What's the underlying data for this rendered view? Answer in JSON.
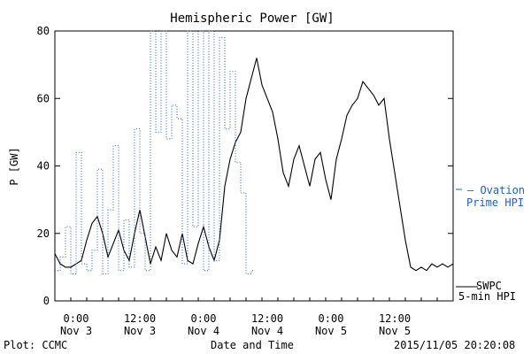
{
  "chart_data": {
    "type": "line",
    "title": "Hemispheric Power [GW]",
    "ylabel": "P [GW]",
    "xlabel": "Date and Time",
    "ylim": [
      0,
      80
    ],
    "xlim": [
      "2015-11-02 20:00",
      "2015-11-05 23:00"
    ],
    "y_ticks": [
      "0",
      "20",
      "40",
      "60",
      "80"
    ],
    "x_ticks": [
      {
        "time": "2015-11-03 00:00",
        "label1": "0:00",
        "label2": "Nov 3"
      },
      {
        "time": "2015-11-03 12:00",
        "label1": "12:00",
        "label2": "Nov 3"
      },
      {
        "time": "2015-11-04 00:00",
        "label1": "0:00",
        "label2": "Nov 4"
      },
      {
        "time": "2015-11-04 12:00",
        "label1": "12:00",
        "label2": "Nov 4"
      },
      {
        "time": "2015-11-05 00:00",
        "label1": "0:00",
        "label2": "Nov 5"
      },
      {
        "time": "2015-11-05 12:00",
        "label1": "12:00",
        "label2": "Nov 5"
      }
    ],
    "legend": [
      {
        "line1": "SWPC",
        "line2": "5-min HPI",
        "color": "#000000"
      },
      {
        "line1": "– Ovation",
        "line2": "Prime HPI",
        "color": "#1f5fbf"
      }
    ],
    "footer_left": "Plot: CCMC",
    "footer_right": "2015/11/05 20:20:08",
    "series": [
      {
        "name": "SWPC 5-min HPI",
        "color": "#000000",
        "style": "solid",
        "points": [
          [
            "2015-11-02 20:00",
            14
          ],
          [
            "2015-11-02 21:00",
            11
          ],
          [
            "2015-11-02 22:00",
            10
          ],
          [
            "2015-11-02 23:00",
            10
          ],
          [
            "2015-11-03 00:00",
            11
          ],
          [
            "2015-11-03 01:00",
            12
          ],
          [
            "2015-11-03 02:00",
            18
          ],
          [
            "2015-11-03 03:00",
            23
          ],
          [
            "2015-11-03 04:00",
            25
          ],
          [
            "2015-11-03 05:00",
            20
          ],
          [
            "2015-11-03 06:00",
            13
          ],
          [
            "2015-11-03 07:00",
            17
          ],
          [
            "2015-11-03 08:00",
            21
          ],
          [
            "2015-11-03 09:00",
            15
          ],
          [
            "2015-11-03 10:00",
            12
          ],
          [
            "2015-11-03 11:00",
            20
          ],
          [
            "2015-11-03 12:00",
            27
          ],
          [
            "2015-11-03 13:00",
            19
          ],
          [
            "2015-11-03 14:00",
            11
          ],
          [
            "2015-11-03 15:00",
            16
          ],
          [
            "2015-11-03 16:00",
            12
          ],
          [
            "2015-11-03 17:00",
            20
          ],
          [
            "2015-11-03 18:00",
            15
          ],
          [
            "2015-11-03 19:00",
            13
          ],
          [
            "2015-11-03 20:00",
            20
          ],
          [
            "2015-11-03 21:00",
            12
          ],
          [
            "2015-11-03 22:00",
            11
          ],
          [
            "2015-11-03 23:00",
            17
          ],
          [
            "2015-11-04 00:00",
            22
          ],
          [
            "2015-11-04 01:00",
            16
          ],
          [
            "2015-11-04 02:00",
            12
          ],
          [
            "2015-11-04 03:00",
            18
          ],
          [
            "2015-11-04 04:00",
            34
          ],
          [
            "2015-11-04 05:00",
            42
          ],
          [
            "2015-11-04 06:00",
            47
          ],
          [
            "2015-11-04 07:00",
            50
          ],
          [
            "2015-11-04 08:00",
            60
          ],
          [
            "2015-11-04 09:00",
            66
          ],
          [
            "2015-11-04 10:00",
            72
          ],
          [
            "2015-11-04 11:00",
            64
          ],
          [
            "2015-11-04 12:00",
            60
          ],
          [
            "2015-11-04 13:00",
            56
          ],
          [
            "2015-11-04 14:00",
            48
          ],
          [
            "2015-11-04 15:00",
            38
          ],
          [
            "2015-11-04 16:00",
            34
          ],
          [
            "2015-11-04 17:00",
            42
          ],
          [
            "2015-11-04 18:00",
            46
          ],
          [
            "2015-11-04 19:00",
            40
          ],
          [
            "2015-11-04 20:00",
            34
          ],
          [
            "2015-11-04 21:00",
            42
          ],
          [
            "2015-11-04 22:00",
            44
          ],
          [
            "2015-11-04 23:00",
            36
          ],
          [
            "2015-11-05 00:00",
            30
          ],
          [
            "2015-11-05 01:00",
            42
          ],
          [
            "2015-11-05 02:00",
            48
          ],
          [
            "2015-11-05 03:00",
            55
          ],
          [
            "2015-11-05 04:00",
            58
          ],
          [
            "2015-11-05 05:00",
            60
          ],
          [
            "2015-11-05 06:00",
            65
          ],
          [
            "2015-11-05 07:00",
            63
          ],
          [
            "2015-11-05 08:00",
            61
          ],
          [
            "2015-11-05 09:00",
            58
          ],
          [
            "2015-11-05 10:00",
            60
          ],
          [
            "2015-11-05 11:00",
            48
          ],
          [
            "2015-11-05 12:00",
            38
          ],
          [
            "2015-11-05 13:00",
            28
          ],
          [
            "2015-11-05 14:00",
            18
          ],
          [
            "2015-11-05 15:00",
            10
          ],
          [
            "2015-11-05 16:00",
            9
          ],
          [
            "2015-11-05 17:00",
            10
          ],
          [
            "2015-11-05 18:00",
            9
          ],
          [
            "2015-11-05 19:00",
            11
          ],
          [
            "2015-11-05 20:00",
            10
          ],
          [
            "2015-11-05 21:00",
            11
          ],
          [
            "2015-11-05 22:00",
            10
          ],
          [
            "2015-11-05 23:00",
            11
          ]
        ]
      },
      {
        "name": "Ovation Prime HPI",
        "color": "#1f5fbf",
        "style": "dotted-step",
        "points": [
          [
            "2015-11-02 20:00",
            9
          ],
          [
            "2015-11-02 21:00",
            13
          ],
          [
            "2015-11-02 22:00",
            22
          ],
          [
            "2015-11-02 23:00",
            8
          ],
          [
            "2015-11-03 00:00",
            44
          ],
          [
            "2015-11-03 01:00",
            11
          ],
          [
            "2015-11-03 02:00",
            9
          ],
          [
            "2015-11-03 03:00",
            15
          ],
          [
            "2015-11-03 04:00",
            39
          ],
          [
            "2015-11-03 05:00",
            8
          ],
          [
            "2015-11-03 06:00",
            27
          ],
          [
            "2015-11-03 07:00",
            46
          ],
          [
            "2015-11-03 08:00",
            9
          ],
          [
            "2015-11-03 09:00",
            24
          ],
          [
            "2015-11-03 10:00",
            10
          ],
          [
            "2015-11-03 11:00",
            51
          ],
          [
            "2015-11-03 12:00",
            20
          ],
          [
            "2015-11-03 13:00",
            9
          ],
          [
            "2015-11-03 14:00",
            80
          ],
          [
            "2015-11-03 15:00",
            50
          ],
          [
            "2015-11-03 16:00",
            80
          ],
          [
            "2015-11-03 17:00",
            48
          ],
          [
            "2015-11-03 18:00",
            58
          ],
          [
            "2015-11-03 19:00",
            54
          ],
          [
            "2015-11-03 20:00",
            11
          ],
          [
            "2015-11-03 21:00",
            80
          ],
          [
            "2015-11-03 22:00",
            22
          ],
          [
            "2015-11-03 23:00",
            80
          ],
          [
            "2015-11-04 00:00",
            9
          ],
          [
            "2015-11-04 01:00",
            80
          ],
          [
            "2015-11-04 02:00",
            12
          ],
          [
            "2015-11-04 03:00",
            78
          ],
          [
            "2015-11-04 04:00",
            51
          ],
          [
            "2015-11-04 05:00",
            68
          ],
          [
            "2015-11-04 06:00",
            41
          ],
          [
            "2015-11-04 07:00",
            32
          ],
          [
            "2015-11-04 08:00",
            8
          ],
          [
            "2015-11-04 09:00",
            9
          ]
        ]
      }
    ]
  }
}
